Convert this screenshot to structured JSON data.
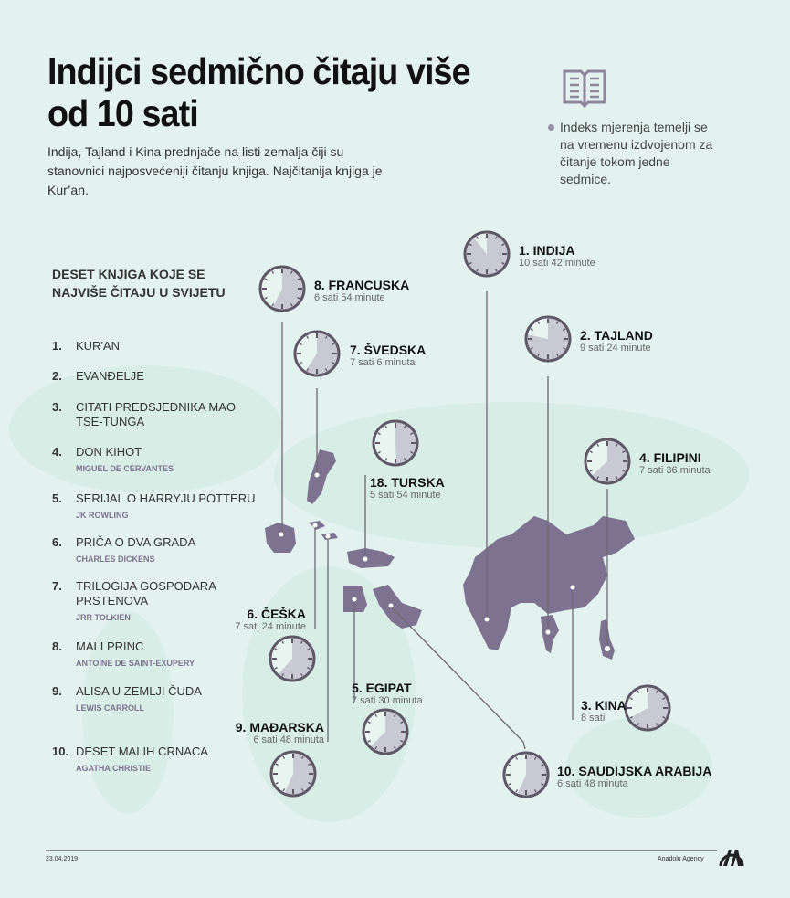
{
  "header": {
    "title": "Indijci sedmično čitaju više od 10 sati",
    "subtitle": "Indija, Tajland i Kina prednjače na listi zemalja čiji su stanovnici najposvećeniji čitanju knjiga. Najčitanija knjiga je Kur’an.",
    "note": "Indeks mjerenja temelji se na vremenu izdvojenom za čitanje tokom jedne sedmice.",
    "icon": "open-book-icon"
  },
  "books": {
    "title": "DESET KNJIGA KOJE SE NAJVIŠE ČITAJU U SVIJETU",
    "items": [
      {
        "num": "1.",
        "name": "KUR'AN",
        "author": ""
      },
      {
        "num": "2.",
        "name": "EVANĐELJE",
        "author": ""
      },
      {
        "num": "3.",
        "name": "CITATI PREDSJEDNIKA MAO TSE-TUNGA",
        "author": ""
      },
      {
        "num": "4.",
        "name": "DON KIHOT",
        "author": "MIGUEL DE CERVANTES"
      },
      {
        "num": "5.",
        "name": "SERIJAL O HARRYJU POTTERU",
        "author": "JK ROWLING"
      },
      {
        "num": "6.",
        "name": "PRIČA O DVA GRADA",
        "author": "CHARLES DICKENS"
      },
      {
        "num": "7.",
        "name": "TRILOGIJA GOSPODARA PRSTENOVA",
        "author": "JRR TOLKIEN"
      },
      {
        "num": "8.",
        "name": "MALI PRINC",
        "author": "ANTOINE DE SAINT-EXUPERY"
      },
      {
        "num": "9.",
        "name": "ALISA U ZEMLJI ČUDA",
        "author": "LEWIS CARROLL"
      },
      {
        "num": "10.",
        "name": "DESET MALIH CRNACA",
        "author": "AGATHA CHRISTIE"
      }
    ]
  },
  "countries": [
    {
      "id": "indija",
      "label": "1. INDIJA",
      "time": "10 sati 42 minute",
      "hours": 10.7
    },
    {
      "id": "tajland",
      "label": "2. TAJLAND",
      "time": "9 sati 24 minute",
      "hours": 9.4
    },
    {
      "id": "kina",
      "label": "3. KINA",
      "time": "8 sati",
      "hours": 8
    },
    {
      "id": "filipini",
      "label": "4. FILIPINI",
      "time": "7 sati 36 minuta",
      "hours": 7.6
    },
    {
      "id": "egipat",
      "label": "5. EGIPAT",
      "time": "7 sati 30 minuta",
      "hours": 7.5
    },
    {
      "id": "ceska",
      "label": "6. ČEŠKA",
      "time": "7 sati 24 minute",
      "hours": 7.4
    },
    {
      "id": "svedska",
      "label": "7. ŠVEDSKA",
      "time": "7 sati 6 minuta",
      "hours": 7.1
    },
    {
      "id": "francuska",
      "label": "8. FRANCUSKA",
      "time": "6 sati 54 minute",
      "hours": 6.9
    },
    {
      "id": "madjarska",
      "label": "9. MAĐARSKA",
      "time": "6 sati 48 minuta",
      "hours": 6.8
    },
    {
      "id": "saudijska",
      "label": "10. SAUDIJSKA ARABIJA",
      "time": "6 sati 48 minuta",
      "hours": 6.8
    },
    {
      "id": "turska",
      "label": "18. TURSKA",
      "time": "5 sati 54 minute",
      "hours": 5.9
    }
  ],
  "colors": {
    "background": "#e3f2ee",
    "highlight_country": "#7d7390",
    "clock_fill": "#c9c9d3",
    "clock_rim": "#5e5866",
    "land": "#cfe7df"
  },
  "footer": {
    "date": "23.04.2019",
    "agency": "Anadolu Agency",
    "logo_text": "AA"
  }
}
